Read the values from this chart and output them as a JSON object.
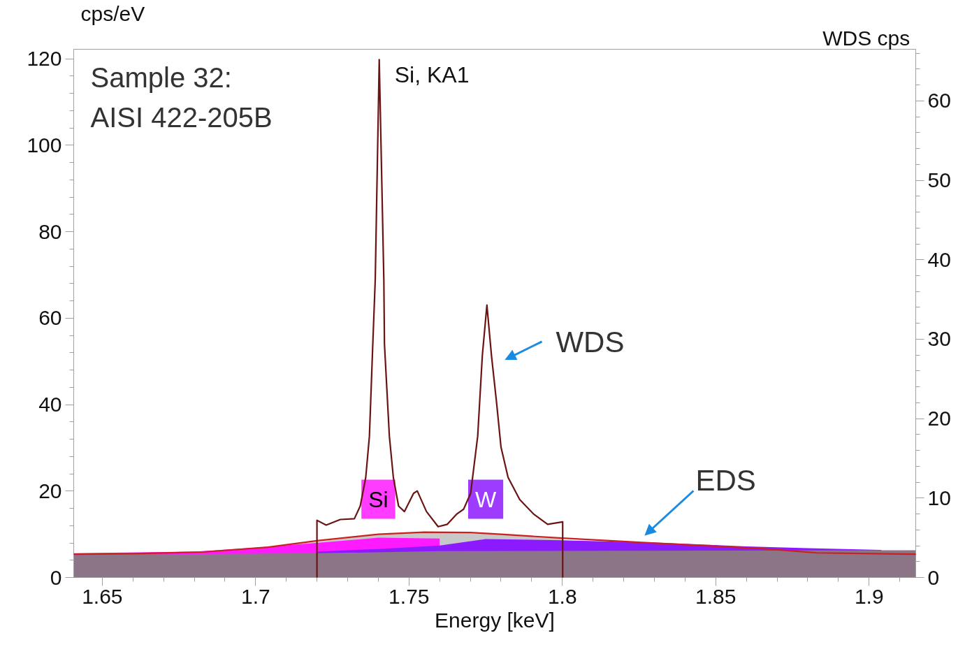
{
  "chart_data": {
    "type": "area",
    "xlabel": "Energy [keV]",
    "ylabel": "cps/eV",
    "y2label": "WDS  cps",
    "xlim": [
      1.6407,
      1.9152
    ],
    "ylim": [
      0,
      122.2
    ],
    "y2lim": [
      0,
      66.5
    ],
    "xticks": [
      1.65,
      1.7,
      1.75,
      1.8,
      1.85,
      1.9,
      {
        "value": 1.66,
        "label": null
      },
      {
        "value": 1.67,
        "label": null
      },
      {
        "value": 1.68,
        "label": null
      },
      {
        "value": 1.69,
        "label": null
      },
      {
        "value": 1.71,
        "label": null
      },
      {
        "value": 1.72,
        "label": null
      },
      {
        "value": 1.73,
        "label": null
      },
      {
        "value": 1.74,
        "label": null
      },
      {
        "value": 1.76,
        "label": null
      },
      {
        "value": 1.77,
        "label": null
      },
      {
        "value": 1.78,
        "label": null
      },
      {
        "value": 1.79,
        "label": null
      },
      {
        "value": 1.81,
        "label": null
      },
      {
        "value": 1.82,
        "label": null
      },
      {
        "value": 1.83,
        "label": null
      },
      {
        "value": 1.84,
        "label": null
      },
      {
        "value": 1.86,
        "label": null
      },
      {
        "value": 1.87,
        "label": null
      },
      {
        "value": 1.88,
        "label": null
      },
      {
        "value": 1.89,
        "label": null
      },
      {
        "value": 1.91,
        "label": null
      }
    ],
    "yticks": [
      0,
      20,
      40,
      60,
      80,
      100,
      120,
      {
        "value": 4,
        "label": null
      },
      {
        "value": 8,
        "label": null
      },
      {
        "value": 12,
        "label": null
      },
      {
        "value": 16,
        "label": null
      },
      {
        "value": 24,
        "label": null
      },
      {
        "value": 28,
        "label": null
      },
      {
        "value": 32,
        "label": null
      },
      {
        "value": 36,
        "label": null
      },
      {
        "value": 44,
        "label": null
      },
      {
        "value": 48,
        "label": null
      },
      {
        "value": 52,
        "label": null
      },
      {
        "value": 56,
        "label": null
      },
      {
        "value": 64,
        "label": null
      },
      {
        "value": 68,
        "label": null
      },
      {
        "value": 72,
        "label": null
      },
      {
        "value": 76,
        "label": null
      },
      {
        "value": 84,
        "label": null
      },
      {
        "value": 88,
        "label": null
      },
      {
        "value": 92,
        "label": null
      },
      {
        "value": 96,
        "label": null
      },
      {
        "value": 104,
        "label": null
      },
      {
        "value": 108,
        "label": null
      },
      {
        "value": 112,
        "label": null
      },
      {
        "value": 116,
        "label": null
      }
    ],
    "y2ticks": [
      0,
      10,
      20,
      30,
      40,
      50,
      60,
      {
        "value": 2,
        "label": null
      },
      {
        "value": 4,
        "label": null
      },
      {
        "value": 6,
        "label": null
      },
      {
        "value": 8,
        "label": null
      },
      {
        "value": 12,
        "label": null
      },
      {
        "value": 14,
        "label": null
      },
      {
        "value": 16,
        "label": null
      },
      {
        "value": 18,
        "label": null
      },
      {
        "value": 22,
        "label": null
      },
      {
        "value": 24,
        "label": null
      },
      {
        "value": 26,
        "label": null
      },
      {
        "value": 28,
        "label": null
      },
      {
        "value": 32,
        "label": null
      },
      {
        "value": 34,
        "label": null
      },
      {
        "value": 36,
        "label": null
      },
      {
        "value": 38,
        "label": null
      },
      {
        "value": 42,
        "label": null
      },
      {
        "value": 44,
        "label": null
      },
      {
        "value": 46,
        "label": null
      },
      {
        "value": 48,
        "label": null
      },
      {
        "value": 52,
        "label": null
      },
      {
        "value": 54,
        "label": null
      },
      {
        "value": 56,
        "label": null
      },
      {
        "value": 58,
        "label": null
      },
      {
        "value": 62,
        "label": null
      },
      {
        "value": 64,
        "label": null
      },
      {
        "value": 66,
        "label": null
      }
    ],
    "series": [
      {
        "color": "#c8c8c8",
        "x": [
          1.7,
          1.72,
          1.74,
          1.76,
          1.78,
          1.8
        ],
        "values": [
          6.8,
          8.3,
          10.0,
          10.5,
          10.0,
          9.0
        ]
      },
      {
        "name": "Si",
        "color": "#ff1aff",
        "x": [
          1.6407,
          1.68,
          1.7,
          1.72,
          1.74,
          1.76
        ],
        "values": [
          5.6,
          6.0,
          6.9,
          8.0,
          9.2,
          9.0
        ]
      },
      {
        "name": "W",
        "color": "#8c1aff",
        "x": [
          1.72,
          1.74,
          1.76,
          1.775,
          1.8,
          1.83,
          1.86,
          1.88,
          1.904
        ],
        "values": [
          6.0,
          6.6,
          7.4,
          8.9,
          8.6,
          8.1,
          7.2,
          6.8,
          6.4
        ]
      },
      {
        "color": "#8b7587",
        "x": [
          1.6407,
          1.72,
          1.76,
          1.9152
        ],
        "values": [
          5.2,
          5.6,
          6.1,
          6.3
        ]
      },
      {
        "type": "line",
        "color": "#cc2020",
        "x": [
          1.6407,
          1.66,
          1.683,
          1.704,
          1.72,
          1.74,
          1.755,
          1.77,
          1.78,
          1.8,
          1.826,
          1.845,
          1.865,
          1.883,
          1.9152
        ],
        "values": [
          5.4,
          5.5,
          5.9,
          7.0,
          8.5,
          10.0,
          10.5,
          10.4,
          10.0,
          9.1,
          8.1,
          7.4,
          6.7,
          5.7,
          5.4
        ]
      },
      {
        "type": "line",
        "axis": "y2",
        "color": "#6b1414",
        "x": [
          1.72,
          1.72,
          1.723,
          1.7276,
          1.7322,
          1.7341,
          1.7359,
          1.7371,
          1.7382,
          1.739,
          1.7403,
          1.7418,
          1.742,
          1.7436,
          1.7449,
          1.7466,
          1.7485,
          1.7515,
          1.7527,
          1.7557,
          1.7595,
          1.7625,
          1.7656,
          1.7678,
          1.7701,
          1.7724,
          1.7739,
          1.7754,
          1.7769,
          1.7785,
          1.78,
          1.7823,
          1.7861,
          1.7906,
          1.7952,
          1.8001,
          1.8001
        ],
        "values": [
          0,
          7.2,
          6.6,
          7.3,
          7.4,
          9.0,
          12.6,
          17.8,
          29.4,
          37.5,
          65.2,
          37.5,
          29.4,
          17.8,
          12.6,
          9.0,
          8.3,
          10.6,
          10.9,
          8.3,
          6.4,
          6.7,
          8.0,
          8.6,
          10.6,
          17.8,
          27.9,
          34.3,
          27.9,
          22.2,
          16.4,
          12.6,
          9.8,
          8.0,
          6.7,
          7.0,
          0
        ]
      }
    ],
    "annotations": [
      "Sample 32:\nAISI 422-205B",
      {
        "text": "Si, KA1",
        "x": 1.7403,
        "y": 119.8
      },
      "WDS",
      "EDS"
    ]
  }
}
